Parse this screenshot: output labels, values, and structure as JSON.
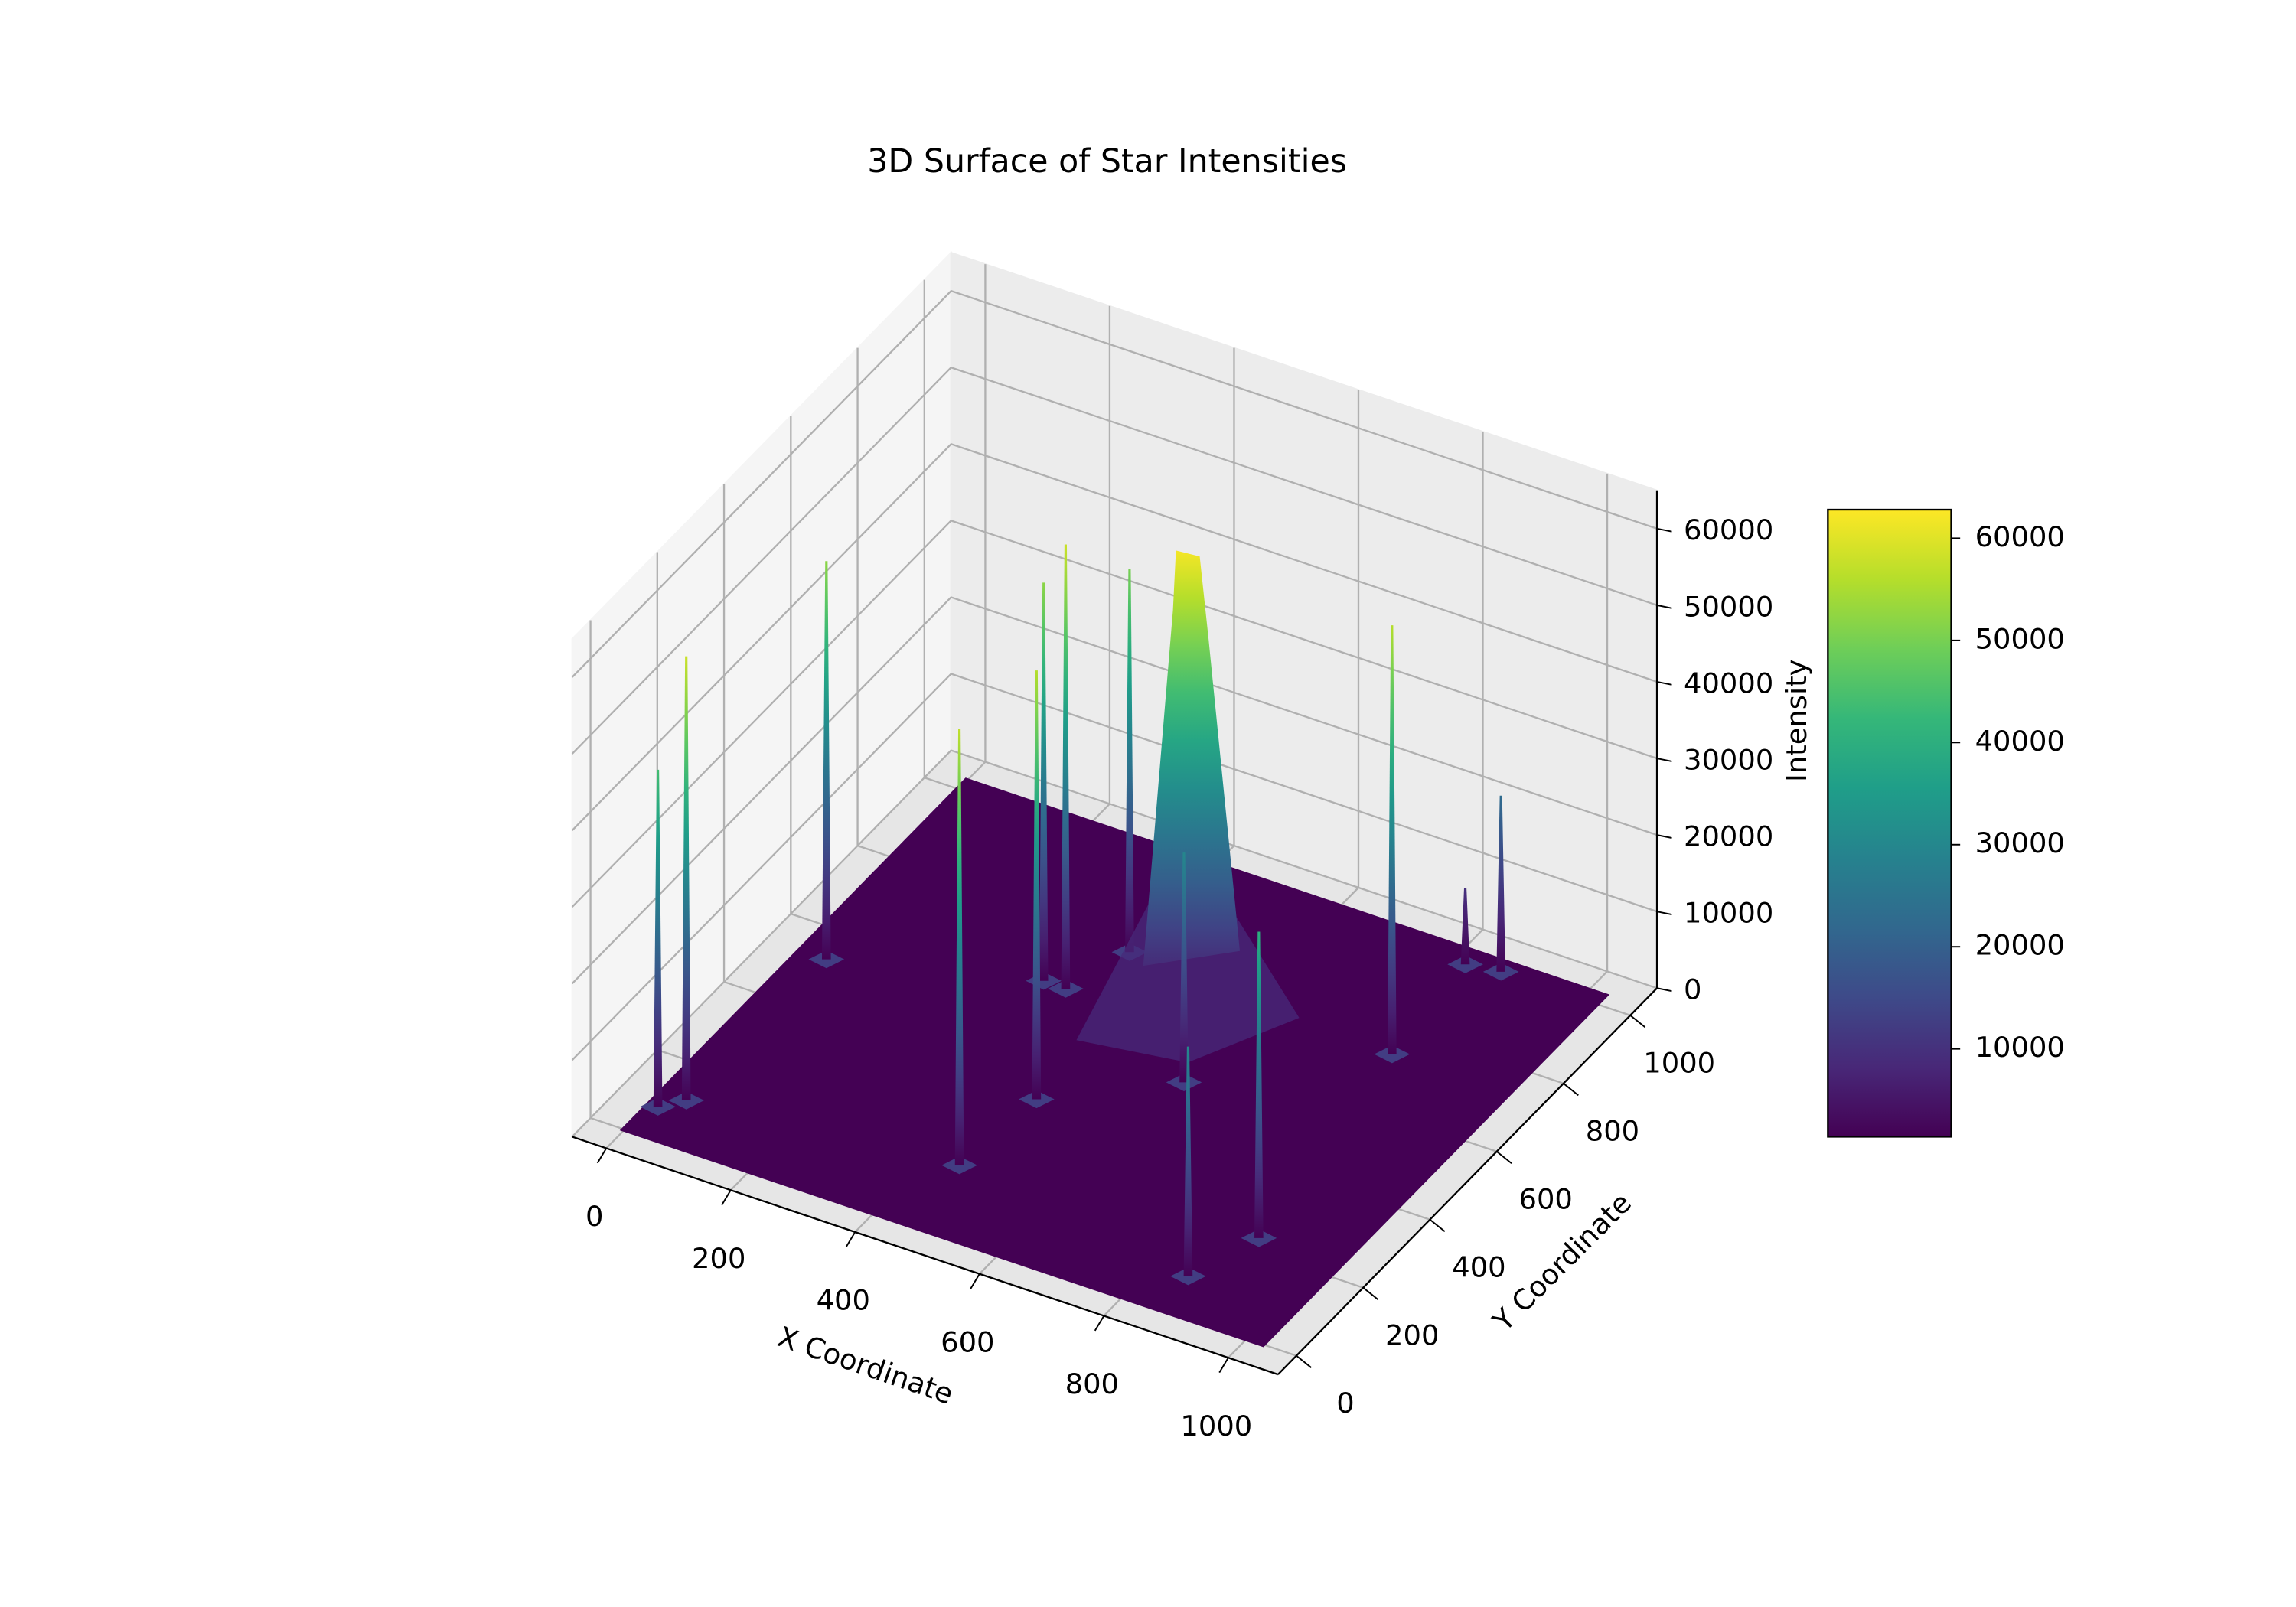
{
  "chart_data": {
    "type": "surface3d",
    "title": "3D Surface of Star Intensities",
    "xlabel": "X Coordinate",
    "ylabel": "Y Coordinate",
    "zlabel": "Intensity",
    "xlim": [
      -55,
      1080
    ],
    "ylim": [
      -55,
      1080
    ],
    "zlim": [
      0,
      65000
    ],
    "xticks": [
      0,
      200,
      400,
      600,
      800,
      1000
    ],
    "yticks": [
      0,
      200,
      400,
      600,
      800,
      1000
    ],
    "zticks": [
      0,
      10000,
      20000,
      30000,
      40000,
      50000,
      60000
    ],
    "colormap": "viridis",
    "clim": [
      1400,
      62800
    ],
    "cticks": [
      10000,
      20000,
      30000,
      40000,
      50000,
      60000
    ],
    "grid": true,
    "stars": {
      "x": [
        557,
        13,
        40,
        42,
        447,
        366,
        462,
        330,
        400,
        895,
        838,
        855,
        872,
        820,
        620
      ],
      "y": [
        649,
        75,
        110,
        526,
        170,
        639,
        373,
        640,
        767,
        232,
        737,
        95,
        1000,
        990,
        520
      ],
      "z": [
        62000,
        44000,
        58000,
        52000,
        57000,
        58000,
        56000,
        52000,
        50000,
        40000,
        56000,
        30000,
        23000,
        10000,
        30000
      ]
    }
  }
}
